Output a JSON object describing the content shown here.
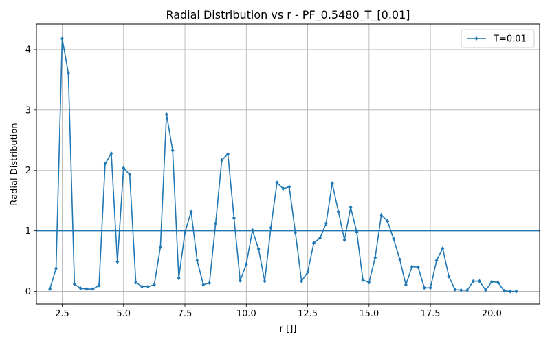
{
  "chart_data": {
    "type": "line",
    "title": "Radial Distribution vs r - PF_0.5480_T_[0.01]",
    "xlabel": "r []]",
    "ylabel": "Radial Distribution",
    "xlim": [
      1.45,
      21.95
    ],
    "ylim": [
      -0.21,
      4.42
    ],
    "xticks": [
      2.5,
      5.0,
      7.5,
      10.0,
      12.5,
      15.0,
      17.5,
      20.0
    ],
    "xtick_labels": [
      "2.5",
      "5.0",
      "7.5",
      "10.0",
      "12.5",
      "15.0",
      "17.5",
      "20.0"
    ],
    "yticks": [
      0,
      1,
      2,
      3,
      4
    ],
    "ytick_labels": [
      "0",
      "1",
      "2",
      "3",
      "4"
    ],
    "grid": true,
    "legend_position": "top-right",
    "reference_line": {
      "y": 1.0,
      "color": "#1f77b4"
    },
    "series": [
      {
        "name": "T=0.01",
        "color": "#1f77b4",
        "marker": "diamond",
        "x": [
          2.0,
          2.25,
          2.5,
          2.75,
          3.0,
          3.25,
          3.5,
          3.75,
          4.0,
          4.25,
          4.5,
          4.75,
          5.0,
          5.25,
          5.5,
          5.75,
          6.0,
          6.25,
          6.5,
          6.75,
          7.0,
          7.25,
          7.5,
          7.75,
          8.0,
          8.25,
          8.5,
          8.75,
          9.0,
          9.25,
          9.5,
          9.75,
          10.0,
          10.25,
          10.5,
          10.75,
          11.0,
          11.25,
          11.5,
          11.75,
          12.0,
          12.25,
          12.5,
          12.75,
          13.0,
          13.25,
          13.5,
          13.75,
          14.0,
          14.25,
          14.5,
          14.75,
          15.0,
          15.25,
          15.5,
          15.75,
          16.0,
          16.25,
          16.5,
          16.75,
          17.0,
          17.25,
          17.5,
          17.75,
          18.0,
          18.25,
          18.5,
          18.75,
          19.0,
          19.25,
          19.5,
          19.75,
          20.0,
          20.25,
          20.5,
          20.75,
          21.0
        ],
        "values": [
          0.04,
          0.38,
          4.18,
          3.61,
          0.12,
          0.05,
          0.04,
          0.04,
          0.1,
          2.11,
          2.28,
          0.49,
          2.04,
          1.93,
          0.15,
          0.08,
          0.08,
          0.11,
          0.73,
          2.93,
          2.33,
          0.22,
          0.97,
          1.32,
          0.51,
          0.11,
          0.14,
          1.12,
          2.17,
          2.27,
          1.21,
          0.18,
          0.45,
          1.01,
          0.7,
          0.17,
          1.05,
          1.8,
          1.7,
          1.73,
          0.97,
          0.17,
          0.32,
          0.8,
          0.88,
          1.12,
          1.79,
          1.32,
          0.85,
          1.39,
          0.98,
          0.19,
          0.15,
          0.56,
          1.26,
          1.16,
          0.87,
          0.53,
          0.11,
          0.41,
          0.4,
          0.06,
          0.06,
          0.51,
          0.71,
          0.25,
          0.03,
          0.02,
          0.02,
          0.17,
          0.17,
          0.02,
          0.16,
          0.15,
          0.01,
          0.0,
          0.0
        ]
      }
    ]
  }
}
